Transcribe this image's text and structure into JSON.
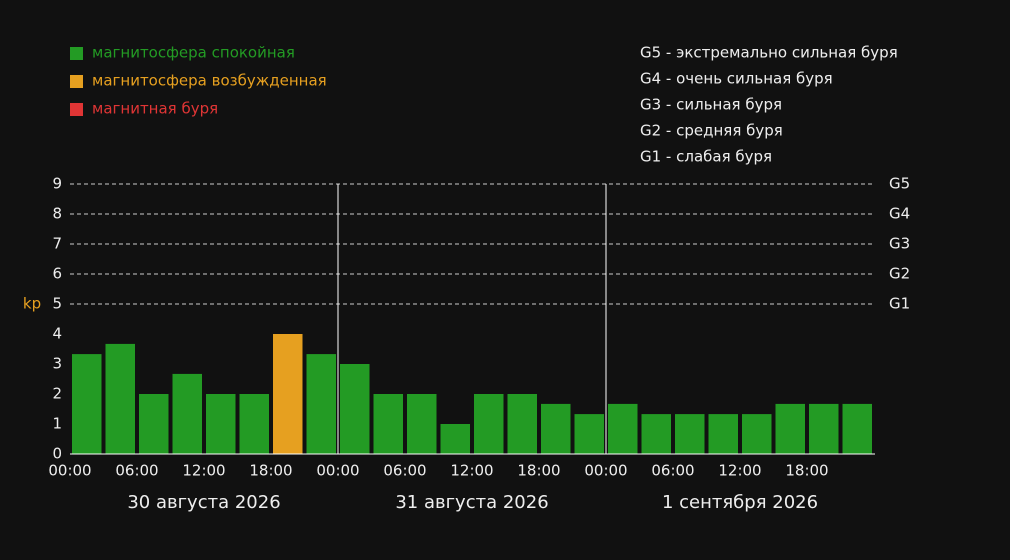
{
  "chart_data": {
    "type": "bar",
    "legend": [
      {
        "name": "магнитосфера спокойная",
        "color": "#239b24"
      },
      {
        "name": "магнитосфера возбужденная",
        "color": "#e6a020"
      },
      {
        "name": "магнитная буря",
        "color": "#e03535"
      }
    ],
    "storm_scale": [
      "G5 - экстремально сильная буря",
      "G4 - очень сильная буря",
      "G3 - сильная буря",
      "G2 - средняя буря",
      "G1 - слабая буря"
    ],
    "ylabel": "kp",
    "categories": [
      "00:00",
      null,
      "06:00",
      null,
      "12:00",
      null,
      "18:00",
      null,
      "00:00",
      null,
      "06:00",
      null,
      "12:00",
      null,
      "18:00",
      null,
      "00:00",
      null,
      "06:00",
      null,
      "12:00",
      null,
      "18:00",
      null
    ],
    "days": [
      "30 августа 2026",
      "31 августа 2026",
      "1 сентября 2026"
    ],
    "values": [
      3.33,
      3.67,
      2,
      2.67,
      2,
      2,
      4,
      3.33,
      3,
      2,
      2,
      1,
      2,
      2,
      1.67,
      1.33,
      1.67,
      1.33,
      1.33,
      1.33,
      1.33,
      1.67,
      1.67,
      1.67
    ],
    "colors": [
      "#239b24",
      "#239b24",
      "#239b24",
      "#239b24",
      "#239b24",
      "#239b24",
      "#e6a020",
      "#239b24",
      "#239b24",
      "#239b24",
      "#239b24",
      "#239b24",
      "#239b24",
      "#239b24",
      "#239b24",
      "#239b24",
      "#239b24",
      "#239b24",
      "#239b24",
      "#239b24",
      "#239b24",
      "#239b24",
      "#239b24",
      "#239b24"
    ],
    "ylim": [
      0,
      9
    ],
    "yticks": [
      0,
      1,
      2,
      3,
      4,
      5,
      6,
      7,
      8,
      9
    ],
    "gridticks": [
      5,
      6,
      7,
      8,
      9
    ],
    "y2ticks": [
      {
        "value": 5,
        "label": "G1"
      },
      {
        "value": 6,
        "label": "G2"
      },
      {
        "value": 7,
        "label": "G3"
      },
      {
        "value": 8,
        "label": "G4"
      },
      {
        "value": 9,
        "label": "G5"
      }
    ]
  }
}
